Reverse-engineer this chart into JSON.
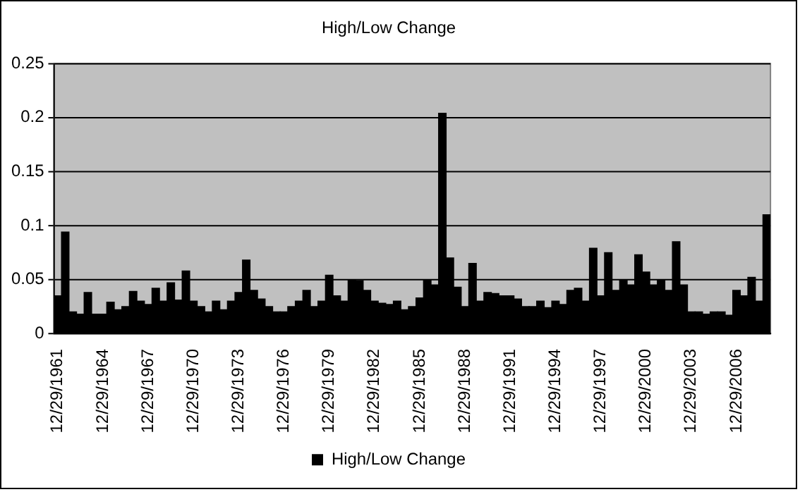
{
  "chart_data": {
    "type": "bar",
    "title": "High/Low Change",
    "categories": [
      "12/29/1961",
      null,
      null,
      null,
      null,
      null,
      "12/29/1964",
      null,
      null,
      null,
      null,
      null,
      "12/29/1967",
      null,
      null,
      null,
      null,
      null,
      "12/29/1970",
      null,
      null,
      null,
      null,
      null,
      "12/29/1973",
      null,
      null,
      null,
      null,
      null,
      "12/29/1976",
      null,
      null,
      null,
      null,
      null,
      "12/29/1979",
      null,
      null,
      null,
      null,
      null,
      "12/29/1982",
      null,
      null,
      null,
      null,
      null,
      "12/29/1985",
      null,
      null,
      null,
      null,
      null,
      "12/29/1988",
      null,
      null,
      null,
      null,
      null,
      "12/29/1991",
      null,
      null,
      null,
      null,
      null,
      "12/29/1994",
      null,
      null,
      null,
      null,
      null,
      "12/29/1997",
      null,
      null,
      null,
      null,
      null,
      "12/29/2000",
      null,
      null,
      null,
      null,
      null,
      "12/29/2003",
      null,
      null,
      null,
      null,
      null,
      "12/29/2006",
      null,
      null,
      null,
      null
    ],
    "series": [
      {
        "name": "High/Low Change",
        "color": "#000000",
        "values": [
          0.035,
          0.094,
          0.02,
          0.018,
          0.038,
          0.018,
          0.018,
          0.029,
          0.022,
          0.025,
          0.039,
          0.03,
          0.027,
          0.042,
          0.03,
          0.047,
          0.031,
          0.058,
          0.03,
          0.025,
          0.02,
          0.03,
          0.022,
          0.03,
          0.038,
          0.068,
          0.04,
          0.032,
          0.025,
          0.02,
          0.02,
          0.025,
          0.03,
          0.04,
          0.025,
          0.03,
          0.054,
          0.035,
          0.03,
          0.05,
          0.049,
          0.04,
          0.03,
          0.028,
          0.027,
          0.03,
          0.022,
          0.025,
          0.033,
          0.05,
          0.045,
          0.204,
          0.07,
          0.043,
          0.025,
          0.065,
          0.03,
          0.038,
          0.037,
          0.035,
          0.035,
          0.032,
          0.025,
          0.025,
          0.03,
          0.024,
          0.03,
          0.027,
          0.04,
          0.042,
          0.03,
          0.079,
          0.035,
          0.075,
          0.04,
          0.05,
          0.045,
          0.073,
          0.057,
          0.045,
          0.05,
          0.04,
          0.085,
          0.045,
          0.02,
          0.02,
          0.018,
          0.02,
          0.02,
          0.017,
          0.04,
          0.035,
          0.052,
          0.03,
          0.11
        ]
      }
    ],
    "ylim": [
      0,
      0.25
    ],
    "yticks": [
      0,
      0.05,
      0.1,
      0.15,
      0.2,
      0.25
    ],
    "grid": "y",
    "legend": "bottom"
  }
}
